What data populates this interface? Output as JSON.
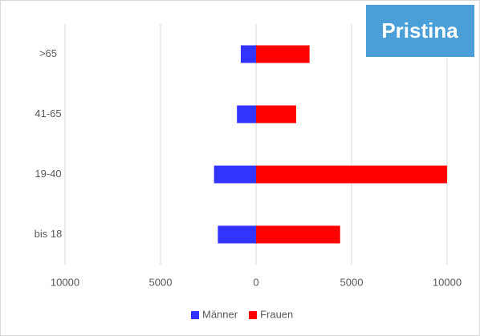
{
  "chart_data": {
    "type": "bar",
    "orientation": "horizontal",
    "title": "Pristina",
    "categories": [
      "bis 18",
      "19-40",
      "41-65",
      ">65"
    ],
    "series": [
      {
        "name": "Männer",
        "color": "#3333ff",
        "values": [
          -2000,
          -2200,
          -1000,
          -800
        ]
      },
      {
        "name": "Frauen",
        "color": "#ff0000",
        "values": [
          4400,
          10000,
          2100,
          2800
        ]
      }
    ],
    "xlim": [
      -10000,
      10000
    ],
    "xticks": [
      {
        "value": -10000,
        "label": "10000"
      },
      {
        "value": -5000,
        "label": "5000"
      },
      0,
      5000,
      10000
    ],
    "grid": true,
    "legend": "bottom"
  }
}
